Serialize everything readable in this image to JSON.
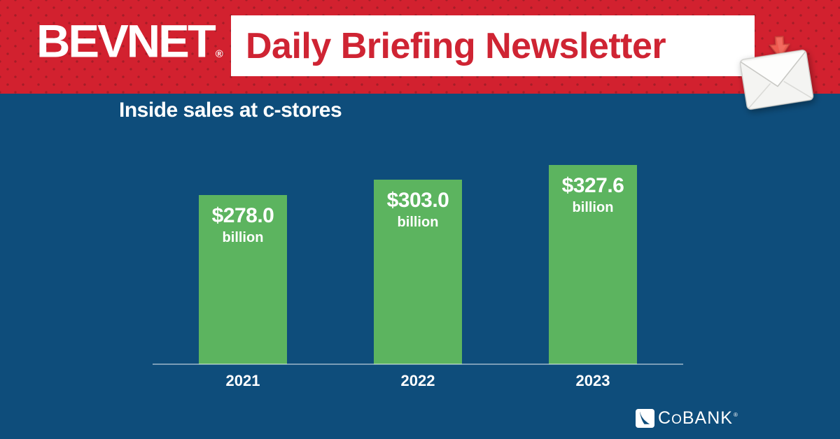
{
  "colors": {
    "banner_red": "#D2212F",
    "banner_dot_red": "#A51D28",
    "background_blue": "#0E4D7B",
    "bar_green": "#5CB45F",
    "title_text_red": "#CF2433",
    "arrow_red": "#EF5A4F",
    "text_white": "#FFFFFF"
  },
  "banner": {
    "logo": "BEVNET",
    "logo_trademark": "®",
    "newsletter_title": "Daily Briefing Newsletter"
  },
  "icons": {
    "banner_icon_1": "download-arrow-icon",
    "banner_icon_2": "envelope-icon",
    "footer_icon": "cobank-leaf-icon"
  },
  "chart_data": {
    "type": "bar",
    "title": "Inside sales at c-stores",
    "categories": [
      "2021",
      "2022",
      "2023"
    ],
    "values": [
      278.0,
      303.0,
      327.6
    ],
    "value_prefix": "$",
    "value_unit": "billion",
    "value_labels": [
      "$278.0 billion",
      "$303.0 billion",
      "$327.6 billion"
    ],
    "xlabel": "",
    "ylabel": "",
    "ylim": [
      0,
      327.6
    ],
    "grid": "off",
    "legend": "none",
    "value_labels_position": "inside-top",
    "bar_color": "#5CB45F",
    "label_color": "#FFFFFF"
  },
  "footer": {
    "brand": "COBANK",
    "brand_parts": {
      "c": "C",
      "o": "O",
      "rest": "BANK",
      "reg": "®"
    }
  }
}
